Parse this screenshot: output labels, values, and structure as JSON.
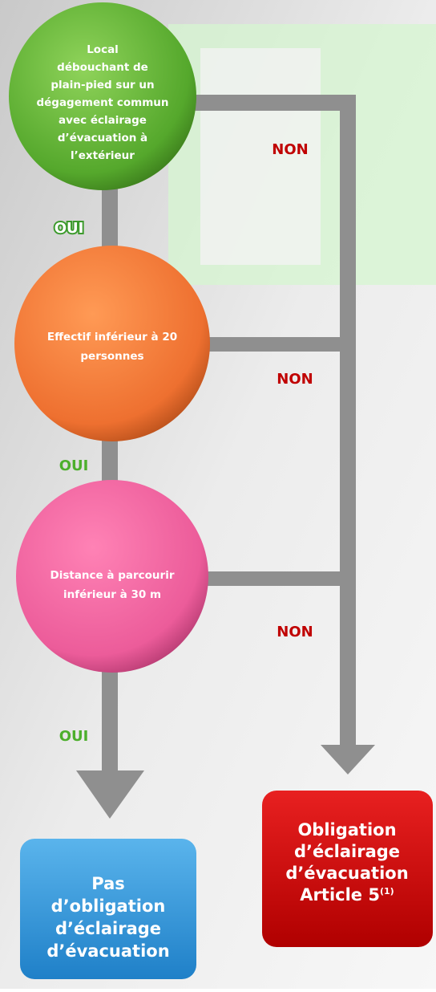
{
  "nodes": [
    {
      "lines": [
        "Local",
        "débouchant de",
        "plain-pied sur un",
        "dégagement commun",
        "avec éclairage",
        "d’évacuation à",
        "l’extérieur"
      ]
    },
    {
      "lines": [
        "Effectif inférieur à 20",
        "personnes"
      ]
    },
    {
      "lines": [
        "Distance à parcourir",
        "inférieur à 30 m"
      ]
    }
  ],
  "edges": [
    {
      "label": "OUI"
    },
    {
      "label": "NON"
    },
    {
      "label": "OUI"
    },
    {
      "label": "NON"
    },
    {
      "label": "OUI"
    },
    {
      "label": "NON"
    }
  ],
  "results": [
    {
      "lines": [
        "Pas",
        "d’obligation",
        "d’éclairage",
        "d’évacuation"
      ]
    },
    {
      "lines": [
        "Obligation",
        "d’éclairage",
        "d’évacuation",
        "Article 5"
      ],
      "superscript": "(1)"
    }
  ]
}
